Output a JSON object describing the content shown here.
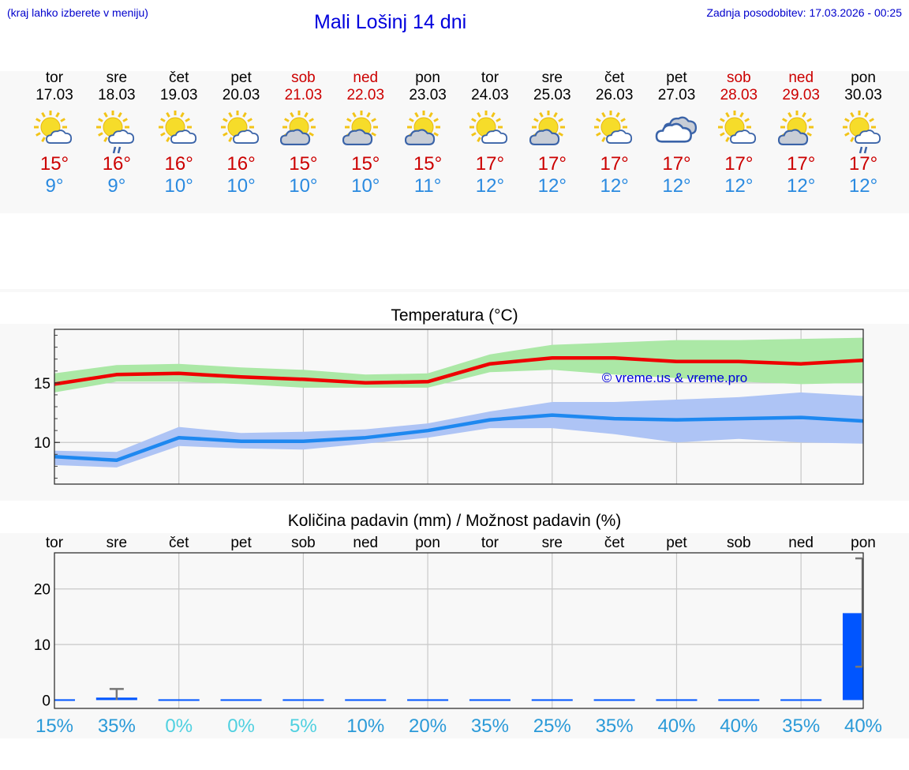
{
  "header": {
    "hint": "(kraj lahko izberete v meniju)",
    "title": "Mali Lošinj 14 dni",
    "updated": "Zadnja posodobitev: 17.03.2026 - 00:25"
  },
  "days": [
    {
      "name": "tor",
      "date": "17.03",
      "weekend": false,
      "icon": "sun-cloud-icon",
      "tmax": "15°",
      "tmin": "9°"
    },
    {
      "name": "sre",
      "date": "18.03",
      "weekend": false,
      "icon": "sun-cloud-rain-icon",
      "tmax": "16°",
      "tmin": "9°"
    },
    {
      "name": "čet",
      "date": "19.03",
      "weekend": false,
      "icon": "sun-cloud-icon",
      "tmax": "16°",
      "tmin": "10°"
    },
    {
      "name": "pet",
      "date": "20.03",
      "weekend": false,
      "icon": "sun-cloud-icon",
      "tmax": "16°",
      "tmin": "10°"
    },
    {
      "name": "sob",
      "date": "21.03",
      "weekend": true,
      "icon": "sun-grey-cloud-icon",
      "tmax": "15°",
      "tmin": "10°"
    },
    {
      "name": "ned",
      "date": "22.03",
      "weekend": true,
      "icon": "sun-grey-cloud-icon",
      "tmax": "15°",
      "tmin": "10°"
    },
    {
      "name": "pon",
      "date": "23.03",
      "weekend": false,
      "icon": "sun-grey-cloud-icon",
      "tmax": "15°",
      "tmin": "11°"
    },
    {
      "name": "tor",
      "date": "24.03",
      "weekend": false,
      "icon": "sun-cloud-icon",
      "tmax": "17°",
      "tmin": "12°"
    },
    {
      "name": "sre",
      "date": "25.03",
      "weekend": false,
      "icon": "sun-grey-cloud-icon",
      "tmax": "17°",
      "tmin": "12°"
    },
    {
      "name": "čet",
      "date": "26.03",
      "weekend": false,
      "icon": "sun-cloud-icon",
      "tmax": "17°",
      "tmin": "12°"
    },
    {
      "name": "pet",
      "date": "27.03",
      "weekend": false,
      "icon": "cloudy-icon",
      "tmax": "17°",
      "tmin": "12°"
    },
    {
      "name": "sob",
      "date": "28.03",
      "weekend": true,
      "icon": "sun-cloud-icon",
      "tmax": "17°",
      "tmin": "12°"
    },
    {
      "name": "ned",
      "date": "29.03",
      "weekend": true,
      "icon": "sun-grey-cloud-icon",
      "tmax": "17°",
      "tmin": "12°"
    },
    {
      "name": "pon",
      "date": "30.03",
      "weekend": false,
      "icon": "sun-cloud-rain-icon",
      "tmax": "17°",
      "tmin": "12°"
    }
  ],
  "colors": {
    "max": "#ee0000",
    "min": "#1e88f0",
    "max_band": "#abe8a6",
    "min_band": "#aec4f5",
    "precip_bar": "#0055ff",
    "prob_low": "#4fd0e0",
    "prob_high": "#2a9ad8"
  },
  "chart_data": [
    {
      "type": "line",
      "title": "Temperatura (°C)",
      "watermark": "© vreme.us & vreme.pro",
      "ylim": [
        6.5,
        19.5
      ],
      "yticks": [
        10,
        15
      ],
      "series": [
        {
          "name": "max",
          "values": [
            14.9,
            15.7,
            15.8,
            15.5,
            15.3,
            15.0,
            15.1,
            16.6,
            17.1,
            17.1,
            16.8,
            16.8,
            16.6,
            16.9
          ]
        },
        {
          "name": "max_low",
          "values": [
            14.2,
            15.1,
            15.1,
            14.9,
            14.6,
            14.6,
            14.6,
            15.9,
            16.1,
            15.7,
            15.4,
            15.1,
            14.9,
            15.0
          ]
        },
        {
          "name": "max_high",
          "values": [
            15.8,
            16.5,
            16.6,
            16.3,
            16.1,
            15.7,
            15.8,
            17.4,
            18.2,
            18.4,
            18.6,
            18.6,
            18.7,
            18.8
          ]
        },
        {
          "name": "min",
          "values": [
            8.8,
            8.5,
            10.4,
            10.1,
            10.1,
            10.4,
            11.0,
            11.9,
            12.3,
            12.0,
            11.9,
            12.0,
            12.1,
            11.8
          ]
        },
        {
          "name": "min_low",
          "values": [
            8.1,
            7.9,
            9.7,
            9.5,
            9.4,
            9.9,
            10.4,
            11.2,
            11.2,
            10.7,
            10.0,
            10.3,
            10.0,
            9.9
          ]
        },
        {
          "name": "min_high",
          "values": [
            9.3,
            9.2,
            11.3,
            10.8,
            10.9,
            11.1,
            11.6,
            12.6,
            13.4,
            13.4,
            13.6,
            13.8,
            14.2,
            13.9
          ]
        }
      ]
    },
    {
      "type": "bar",
      "title": "Količina padavin (mm) / Možnost padavin (%)",
      "ylim": [
        -1.5,
        26.5
      ],
      "yticks": [
        0,
        10,
        20
      ],
      "days": [
        "tor",
        "sre",
        "čet",
        "pet",
        "sob",
        "ned",
        "pon",
        "tor",
        "sre",
        "čet",
        "pet",
        "sob",
        "ned",
        "pon"
      ],
      "precip_mm": [
        0,
        0.3,
        0,
        0,
        0,
        0,
        0,
        0,
        0,
        0,
        0,
        0,
        0,
        15.5
      ],
      "precip_max_mm": [
        0,
        2.0,
        0,
        0,
        0,
        0,
        0,
        0,
        0,
        0,
        0,
        0,
        0,
        25.5
      ],
      "precip_min_mm": [
        0,
        0,
        0,
        0,
        0,
        0,
        0,
        0,
        0,
        0,
        0,
        0,
        0,
        6.0
      ],
      "probability": [
        "15%",
        "35%",
        "0%",
        "0%",
        "5%",
        "10%",
        "20%",
        "35%",
        "25%",
        "35%",
        "40%",
        "40%",
        "35%",
        "40%"
      ]
    }
  ]
}
